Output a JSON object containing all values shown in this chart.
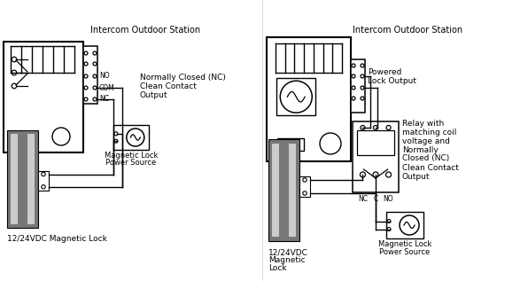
{
  "bg_color": "#ffffff",
  "line_color": "#000000",
  "gray_dark": "#777777",
  "gray_light": "#cccccc",
  "title1": "Intercom Outdoor Station",
  "title2": "Intercom Outdoor Station",
  "label_NO": "NO",
  "label_COM": "COM",
  "label_NC": "NC",
  "label_nc2": "NC",
  "label_c2": "C",
  "label_no2": "NO",
  "text_left1": "Normally Closed (NC)",
  "text_left2": "Clean Contact",
  "text_left3": "Output",
  "text_right1": "Powered",
  "text_right2": "Lock Output",
  "text_relay1": "Relay with",
  "text_relay2": "matching coil",
  "text_relay3": "voltage and",
  "text_relay4": "Normally",
  "text_relay5": "Closed (NC)",
  "text_relay6": "Clean Contact",
  "text_relay7": "Output",
  "text_lock_left": "12/24VDC Magnetic Lock",
  "text_lock_right1": "12/24VDC",
  "text_lock_right2": "Magnetic",
  "text_lock_right3": "Lock",
  "text_mag_left1": "Magnetic Lock",
  "text_mag_left2": "Power Source",
  "text_mag_right1": "Magnetic Lock",
  "text_mag_right2": "Power Source"
}
